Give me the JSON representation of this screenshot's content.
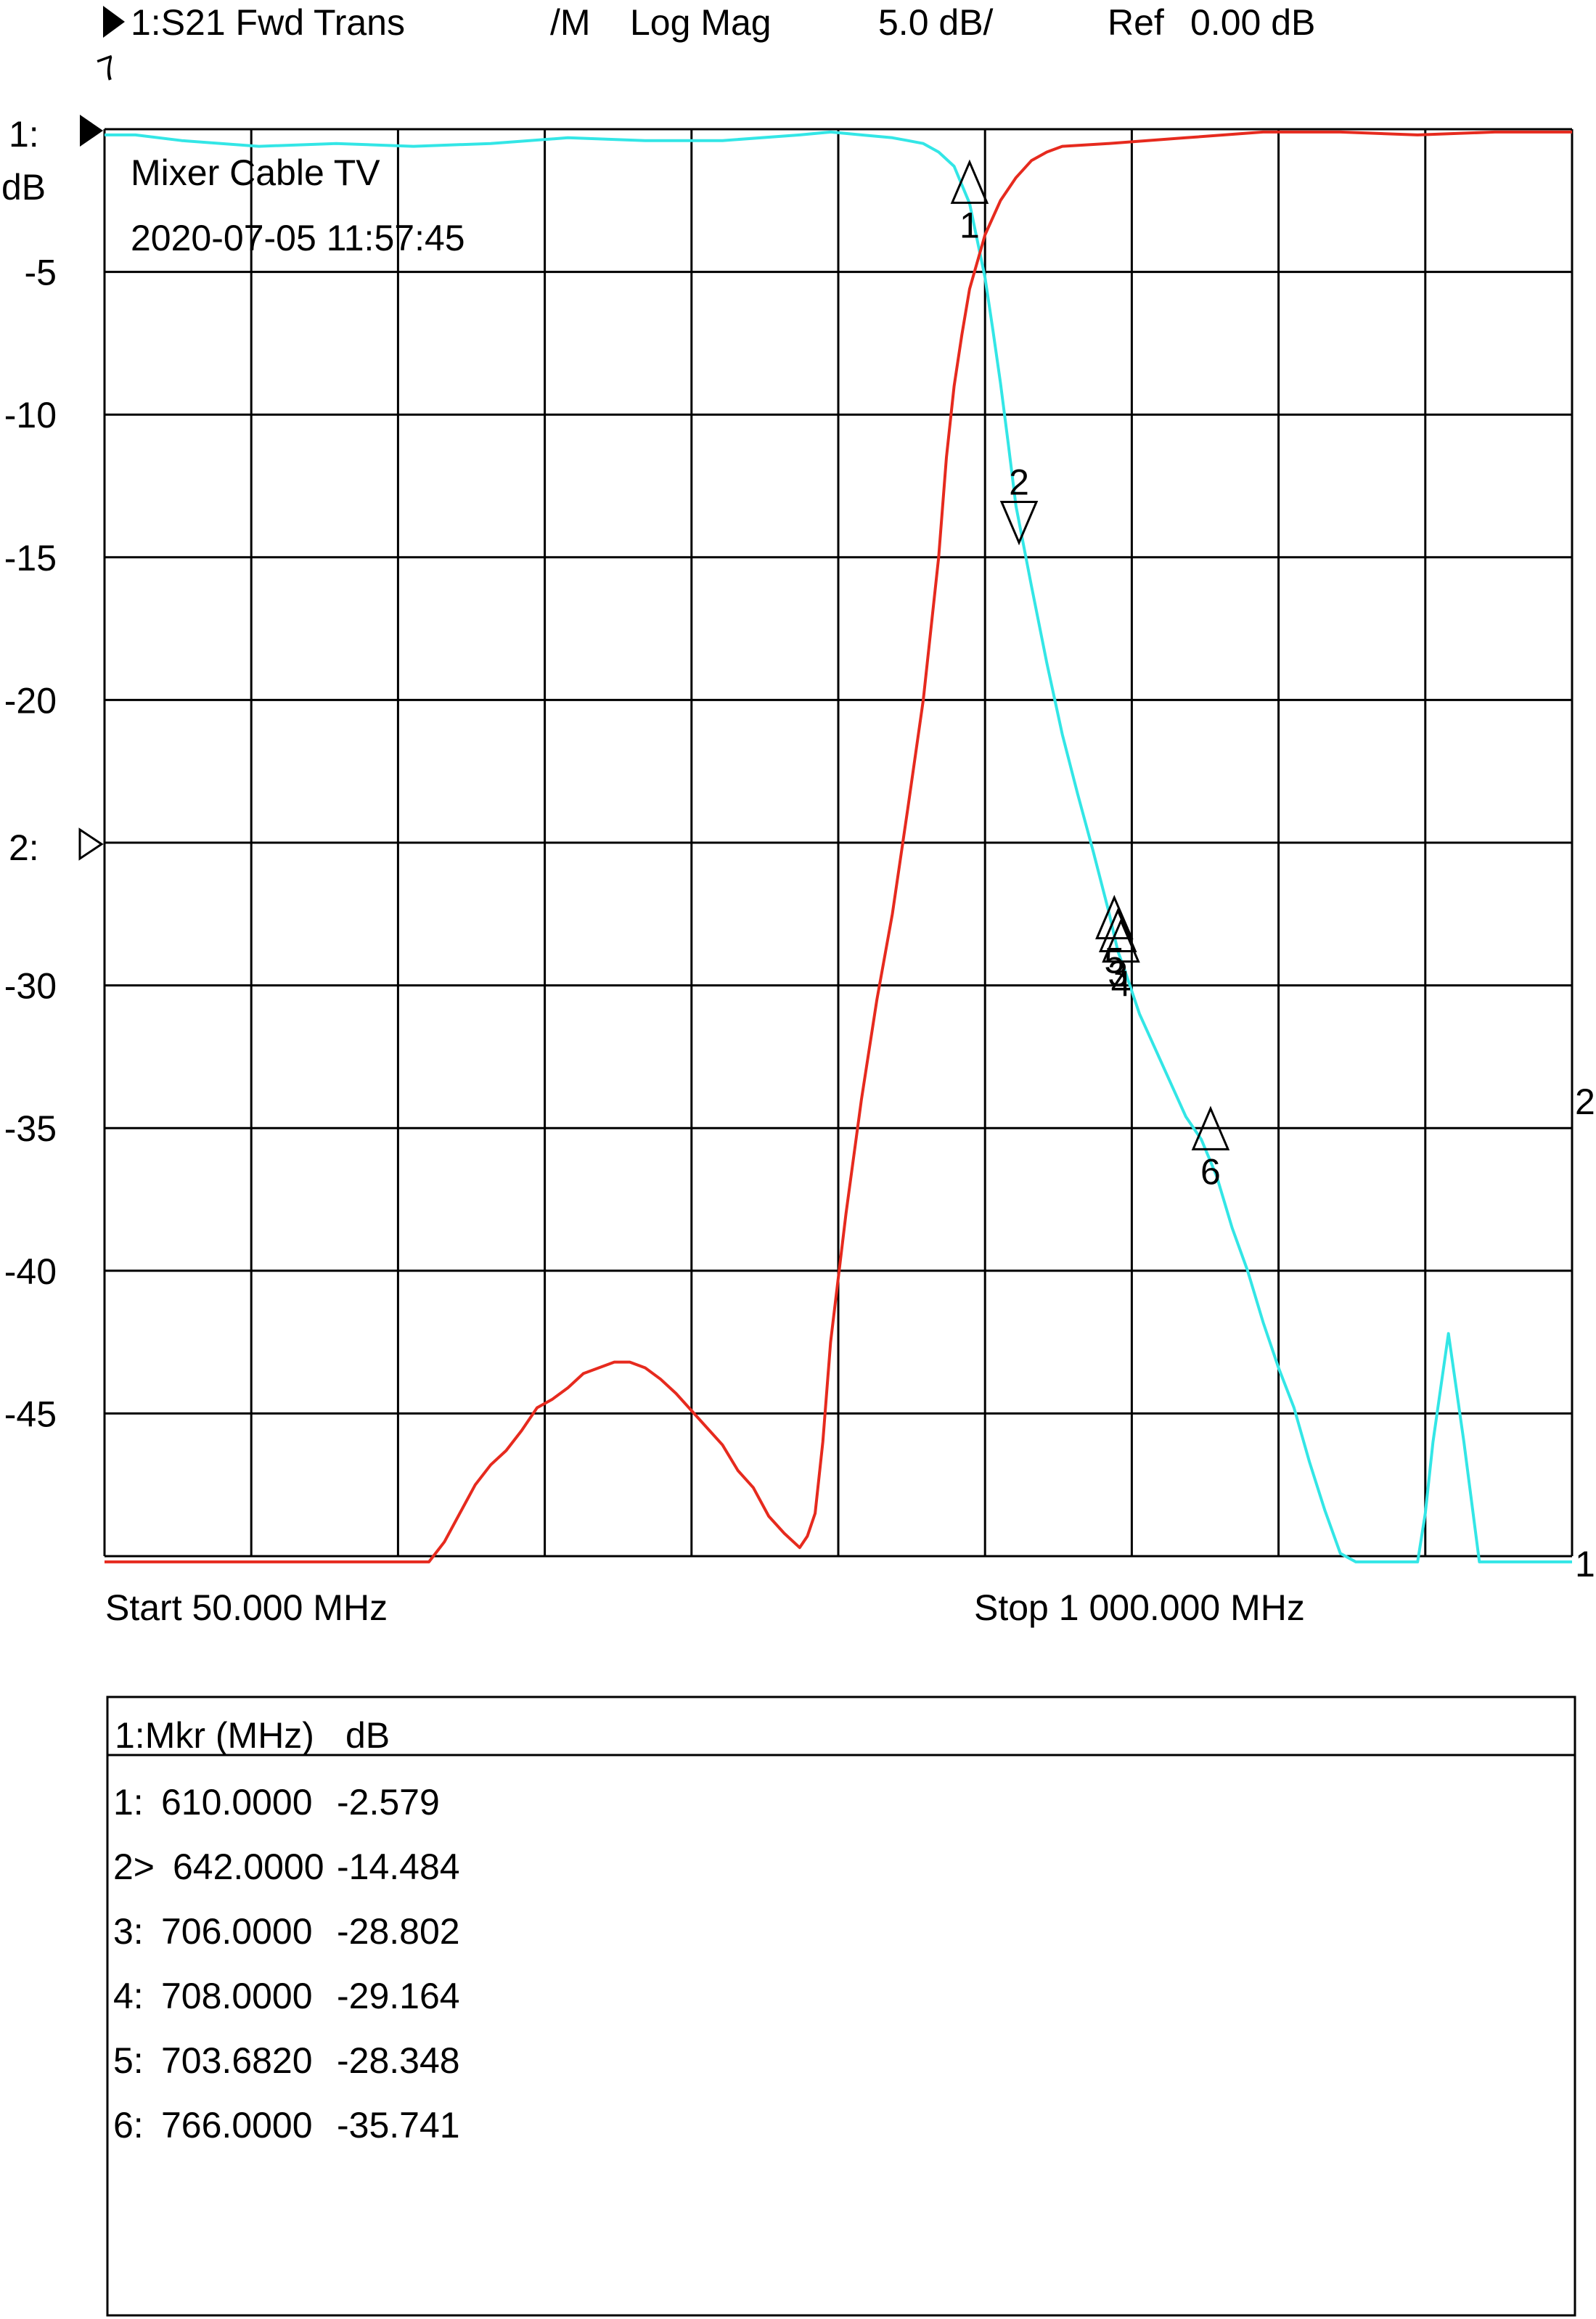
{
  "header": {
    "trace_label": "1:S21 Fwd Trans",
    "format_mode": "/M",
    "format": "Log Mag",
    "scale": "5.0 dB/",
    "ref": "Ref",
    "ref_value": "0.00 dB"
  },
  "left_labels": {
    "ref1": "1:",
    "unit": "dB",
    "ref2": "2:",
    "extra_mark": "7"
  },
  "annotation": {
    "title": "Mixer Cable TV",
    "timestamp": "2020-07-05 11:57:45"
  },
  "footer": {
    "start": "Start 50.000 MHz",
    "stop": "Stop 1 000.000 MHz"
  },
  "right_labels": {
    "trace2": "2",
    "trace1": "1"
  },
  "colors": {
    "trace1": "#33e6e6",
    "trace2": "#e62a1e",
    "grid": "#000000"
  },
  "chart_data": {
    "type": "line",
    "xlabel": "",
    "ylabel": "dB",
    "xlim": [
      50,
      1000
    ],
    "ylim": [
      -50,
      0
    ],
    "x_divisions": 10,
    "y_divisions": 10,
    "grid": true,
    "y_tick_labels": [
      {
        "value": -5,
        "label": "-5"
      },
      {
        "value": -10,
        "label": "-10"
      },
      {
        "value": -15,
        "label": "-15"
      },
      {
        "value": -20,
        "label": "-20"
      },
      {
        "value": -30,
        "label": "-30"
      },
      {
        "value": -35,
        "label": "-35"
      },
      {
        "value": -40,
        "label": "-40"
      },
      {
        "value": -45,
        "label": "-45"
      }
    ],
    "series": [
      {
        "key": "trace1",
        "x": [
          50,
          70,
          100,
          150,
          200,
          250,
          300,
          350,
          400,
          450,
          500,
          520,
          540,
          560,
          570,
          580,
          590,
          600,
          610,
          620,
          625,
          630,
          635,
          640,
          650,
          660,
          670,
          680,
          690,
          700,
          706,
          710,
          720,
          730,
          740,
          750,
          760,
          770,
          780,
          790,
          800,
          810,
          820,
          830,
          840,
          850,
          860,
          870,
          880,
          890,
          900,
          905,
          910,
          920,
          930,
          940,
          950,
          960,
          965,
          970,
          980,
          990,
          1000
        ],
        "y": [
          -0.2,
          -0.2,
          -0.4,
          -0.6,
          -0.5,
          -0.6,
          -0.5,
          -0.3,
          -0.4,
          -0.4,
          -0.2,
          -0.1,
          -0.2,
          -0.3,
          -0.4,
          -0.5,
          -0.8,
          -1.3,
          -2.6,
          -5.2,
          -7.0,
          -8.9,
          -11.0,
          -13.2,
          -16.0,
          -18.7,
          -21.2,
          -23.3,
          -25.3,
          -27.4,
          -28.8,
          -29.4,
          -31.0,
          -32.2,
          -33.4,
          -34.6,
          -35.4,
          -36.7,
          -38.5,
          -40.0,
          -41.8,
          -43.4,
          -44.8,
          -46.7,
          -48.4,
          -49.9,
          -50.2,
          -50.2,
          -50.2,
          -50.2,
          -50.2,
          -48.5,
          -46.0,
          -42.2,
          -46.0,
          -50.2,
          -50.2,
          -50.2,
          -50.2,
          -50.2,
          -50.2,
          -50.2,
          -50.2
        ]
      },
      {
        "key": "trace2",
        "x": [
          50,
          100,
          150,
          200,
          250,
          260,
          270,
          280,
          290,
          300,
          310,
          320,
          330,
          340,
          350,
          360,
          370,
          380,
          390,
          400,
          410,
          420,
          430,
          440,
          450,
          460,
          470,
          480,
          490,
          500,
          505,
          510,
          515,
          520,
          530,
          540,
          550,
          560,
          570,
          580,
          590,
          595,
          600,
          605,
          610,
          620,
          630,
          640,
          650,
          660,
          670,
          700,
          750,
          800,
          850,
          900,
          950,
          1000
        ],
        "y": [
          -50.2,
          -50.2,
          -50.2,
          -50.2,
          -50.2,
          -50.2,
          -49.5,
          -48.5,
          -47.5,
          -46.8,
          -46.3,
          -45.6,
          -44.8,
          -44.5,
          -44.1,
          -43.6,
          -43.4,
          -43.2,
          -43.2,
          -43.4,
          -43.8,
          -44.3,
          -44.9,
          -45.5,
          -46.1,
          -47.0,
          -47.6,
          -48.6,
          -49.2,
          -49.7,
          -49.3,
          -48.5,
          -46.0,
          -42.5,
          -38.0,
          -34.0,
          -30.5,
          -27.5,
          -23.8,
          -20.0,
          -15.0,
          -11.5,
          -9.0,
          -7.2,
          -5.6,
          -3.7,
          -2.5,
          -1.7,
          -1.1,
          -0.8,
          -0.6,
          -0.5,
          -0.3,
          -0.1,
          -0.1,
          -0.2,
          -0.1,
          -0.1
        ]
      }
    ],
    "markers": [
      {
        "num": "1",
        "x": 610,
        "y": -2.579,
        "dir": "up"
      },
      {
        "num": "2",
        "x": 642,
        "y": -14.484,
        "dir": "down"
      },
      {
        "num": "3",
        "x": 706,
        "y": -28.802,
        "dir": "up"
      },
      {
        "num": "4",
        "x": 708,
        "y": -29.164,
        "dir": "up"
      },
      {
        "num": "5",
        "x": 703.682,
        "y": -28.348,
        "dir": "up"
      },
      {
        "num": "6",
        "x": 766,
        "y": -35.741,
        "dir": "up"
      }
    ]
  },
  "marker_table": {
    "header_mkr": "1:Mkr (MHz)",
    "header_unit": "dB",
    "rows": [
      {
        "prefix": "1:",
        "freq": "610.0000",
        "value": "-2.579"
      },
      {
        "prefix": "2>",
        "freq": "642.0000",
        "value": "-14.484"
      },
      {
        "prefix": "3:",
        "freq": "706.0000",
        "value": "-28.802"
      },
      {
        "prefix": "4:",
        "freq": "708.0000",
        "value": "-29.164"
      },
      {
        "prefix": "5:",
        "freq": "703.6820",
        "value": "-28.348"
      },
      {
        "prefix": "6:",
        "freq": "766.0000",
        "value": "-35.741"
      }
    ]
  }
}
